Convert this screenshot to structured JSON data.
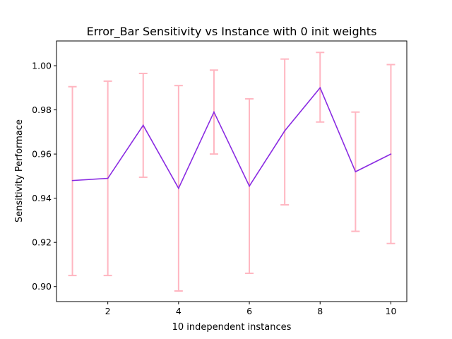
{
  "chart_data": {
    "type": "line",
    "title": "Error_Bar Sensitivity vs Instance with 0 init weights",
    "xlabel": "10 independent instances",
    "ylabel": "Sensitivity Performace",
    "xlim": [
      0.55,
      10.45
    ],
    "ylim": [
      0.8932,
      1.0112
    ],
    "xticks": [
      2,
      4,
      6,
      8,
      10
    ],
    "xtick_labels": [
      "2",
      "4",
      "6",
      "8",
      "10"
    ],
    "yticks": [
      0.9,
      0.92,
      0.94,
      0.96,
      0.98,
      1.0
    ],
    "ytick_labels": [
      "0.90",
      "0.92",
      "0.94",
      "0.96",
      "0.98",
      "1.00"
    ],
    "grid": false,
    "series": [
      {
        "x": [
          1,
          2,
          3,
          4,
          5,
          6,
          7,
          8,
          9,
          10
        ],
        "values": [
          0.948,
          0.949,
          0.973,
          0.9445,
          0.979,
          0.9455,
          0.9705,
          0.99,
          0.952,
          0.96
        ],
        "error_lower": [
          0.905,
          0.905,
          0.9495,
          0.898,
          0.96,
          0.906,
          0.937,
          0.9745,
          0.925,
          0.9195
        ],
        "error_upper": [
          0.9905,
          0.993,
          0.9965,
          0.991,
          0.998,
          0.985,
          1.003,
          1.006,
          0.979,
          1.0005
        ],
        "color": "#8a2be2",
        "error_color": "#ffb6c1"
      }
    ]
  }
}
